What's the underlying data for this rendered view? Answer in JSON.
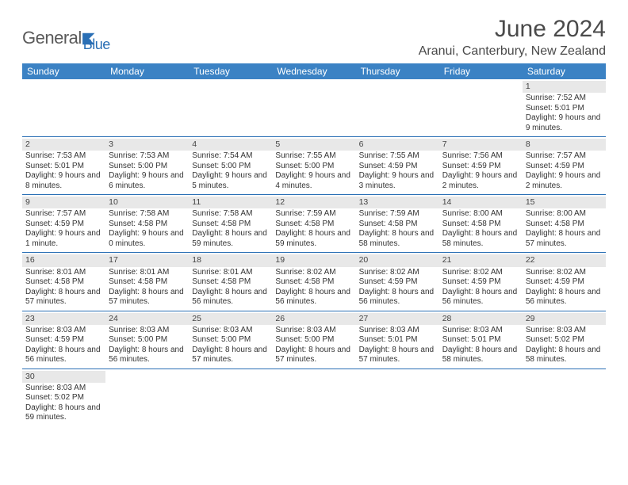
{
  "logo": {
    "text1": "General",
    "text2": "Blue",
    "icon_color": "#2a6fb5",
    "text1_color": "#5a5a5a"
  },
  "title": "June 2024",
  "location": "Aranui, Canterbury, New Zealand",
  "colors": {
    "header_bg": "#3b82c4",
    "header_text": "#ffffff",
    "border": "#2a6fb5",
    "daynum_bg": "#e8e8e8"
  },
  "weekdays": [
    "Sunday",
    "Monday",
    "Tuesday",
    "Wednesday",
    "Thursday",
    "Friday",
    "Saturday"
  ],
  "font": {
    "body_size": 10,
    "header_size": 30,
    "location_size": 16,
    "weekday_size": 12
  },
  "days": [
    null,
    null,
    null,
    null,
    null,
    null,
    {
      "n": "1",
      "sunrise": "Sunrise: 7:52 AM",
      "sunset": "Sunset: 5:01 PM",
      "daylight": "Daylight: 9 hours and 9 minutes."
    },
    {
      "n": "2",
      "sunrise": "Sunrise: 7:53 AM",
      "sunset": "Sunset: 5:01 PM",
      "daylight": "Daylight: 9 hours and 8 minutes."
    },
    {
      "n": "3",
      "sunrise": "Sunrise: 7:53 AM",
      "sunset": "Sunset: 5:00 PM",
      "daylight": "Daylight: 9 hours and 6 minutes."
    },
    {
      "n": "4",
      "sunrise": "Sunrise: 7:54 AM",
      "sunset": "Sunset: 5:00 PM",
      "daylight": "Daylight: 9 hours and 5 minutes."
    },
    {
      "n": "5",
      "sunrise": "Sunrise: 7:55 AM",
      "sunset": "Sunset: 5:00 PM",
      "daylight": "Daylight: 9 hours and 4 minutes."
    },
    {
      "n": "6",
      "sunrise": "Sunrise: 7:55 AM",
      "sunset": "Sunset: 4:59 PM",
      "daylight": "Daylight: 9 hours and 3 minutes."
    },
    {
      "n": "7",
      "sunrise": "Sunrise: 7:56 AM",
      "sunset": "Sunset: 4:59 PM",
      "daylight": "Daylight: 9 hours and 2 minutes."
    },
    {
      "n": "8",
      "sunrise": "Sunrise: 7:57 AM",
      "sunset": "Sunset: 4:59 PM",
      "daylight": "Daylight: 9 hours and 2 minutes."
    },
    {
      "n": "9",
      "sunrise": "Sunrise: 7:57 AM",
      "sunset": "Sunset: 4:59 PM",
      "daylight": "Daylight: 9 hours and 1 minute."
    },
    {
      "n": "10",
      "sunrise": "Sunrise: 7:58 AM",
      "sunset": "Sunset: 4:58 PM",
      "daylight": "Daylight: 9 hours and 0 minutes."
    },
    {
      "n": "11",
      "sunrise": "Sunrise: 7:58 AM",
      "sunset": "Sunset: 4:58 PM",
      "daylight": "Daylight: 8 hours and 59 minutes."
    },
    {
      "n": "12",
      "sunrise": "Sunrise: 7:59 AM",
      "sunset": "Sunset: 4:58 PM",
      "daylight": "Daylight: 8 hours and 59 minutes."
    },
    {
      "n": "13",
      "sunrise": "Sunrise: 7:59 AM",
      "sunset": "Sunset: 4:58 PM",
      "daylight": "Daylight: 8 hours and 58 minutes."
    },
    {
      "n": "14",
      "sunrise": "Sunrise: 8:00 AM",
      "sunset": "Sunset: 4:58 PM",
      "daylight": "Daylight: 8 hours and 58 minutes."
    },
    {
      "n": "15",
      "sunrise": "Sunrise: 8:00 AM",
      "sunset": "Sunset: 4:58 PM",
      "daylight": "Daylight: 8 hours and 57 minutes."
    },
    {
      "n": "16",
      "sunrise": "Sunrise: 8:01 AM",
      "sunset": "Sunset: 4:58 PM",
      "daylight": "Daylight: 8 hours and 57 minutes."
    },
    {
      "n": "17",
      "sunrise": "Sunrise: 8:01 AM",
      "sunset": "Sunset: 4:58 PM",
      "daylight": "Daylight: 8 hours and 57 minutes."
    },
    {
      "n": "18",
      "sunrise": "Sunrise: 8:01 AM",
      "sunset": "Sunset: 4:58 PM",
      "daylight": "Daylight: 8 hours and 56 minutes."
    },
    {
      "n": "19",
      "sunrise": "Sunrise: 8:02 AM",
      "sunset": "Sunset: 4:58 PM",
      "daylight": "Daylight: 8 hours and 56 minutes."
    },
    {
      "n": "20",
      "sunrise": "Sunrise: 8:02 AM",
      "sunset": "Sunset: 4:59 PM",
      "daylight": "Daylight: 8 hours and 56 minutes."
    },
    {
      "n": "21",
      "sunrise": "Sunrise: 8:02 AM",
      "sunset": "Sunset: 4:59 PM",
      "daylight": "Daylight: 8 hours and 56 minutes."
    },
    {
      "n": "22",
      "sunrise": "Sunrise: 8:02 AM",
      "sunset": "Sunset: 4:59 PM",
      "daylight": "Daylight: 8 hours and 56 minutes."
    },
    {
      "n": "23",
      "sunrise": "Sunrise: 8:03 AM",
      "sunset": "Sunset: 4:59 PM",
      "daylight": "Daylight: 8 hours and 56 minutes."
    },
    {
      "n": "24",
      "sunrise": "Sunrise: 8:03 AM",
      "sunset": "Sunset: 5:00 PM",
      "daylight": "Daylight: 8 hours and 56 minutes."
    },
    {
      "n": "25",
      "sunrise": "Sunrise: 8:03 AM",
      "sunset": "Sunset: 5:00 PM",
      "daylight": "Daylight: 8 hours and 57 minutes."
    },
    {
      "n": "26",
      "sunrise": "Sunrise: 8:03 AM",
      "sunset": "Sunset: 5:00 PM",
      "daylight": "Daylight: 8 hours and 57 minutes."
    },
    {
      "n": "27",
      "sunrise": "Sunrise: 8:03 AM",
      "sunset": "Sunset: 5:01 PM",
      "daylight": "Daylight: 8 hours and 57 minutes."
    },
    {
      "n": "28",
      "sunrise": "Sunrise: 8:03 AM",
      "sunset": "Sunset: 5:01 PM",
      "daylight": "Daylight: 8 hours and 58 minutes."
    },
    {
      "n": "29",
      "sunrise": "Sunrise: 8:03 AM",
      "sunset": "Sunset: 5:02 PM",
      "daylight": "Daylight: 8 hours and 58 minutes."
    },
    {
      "n": "30",
      "sunrise": "Sunrise: 8:03 AM",
      "sunset": "Sunset: 5:02 PM",
      "daylight": "Daylight: 8 hours and 59 minutes."
    },
    null,
    null,
    null,
    null,
    null,
    null
  ]
}
